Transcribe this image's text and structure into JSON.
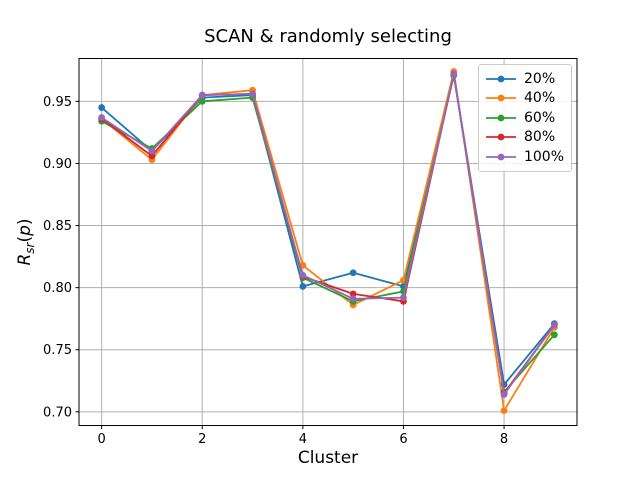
{
  "figure": {
    "title": "SCAN & randomly selecting",
    "xlabel": "Cluster",
    "ylabel": {
      "r": "R",
      "sub": "sr",
      "open": "(",
      "p": "p",
      "close": ")"
    }
  },
  "chart_data": {
    "type": "line",
    "title": "SCAN & randomly selecting",
    "xlabel": "Cluster",
    "ylabel": "R_sr(p)",
    "x": [
      0,
      1,
      2,
      3,
      4,
      5,
      6,
      7,
      8,
      9
    ],
    "series": [
      {
        "name": "20%",
        "color": "#1f77b4",
        "values": [
          0.945,
          0.91,
          0.953,
          0.955,
          0.801,
          0.812,
          0.801,
          0.971,
          0.722,
          0.771
        ]
      },
      {
        "name": "40%",
        "color": "#ff7f0e",
        "values": [
          0.936,
          0.903,
          0.955,
          0.959,
          0.818,
          0.786,
          0.806,
          0.974,
          0.701,
          0.768
        ]
      },
      {
        "name": "60%",
        "color": "#2ca02c",
        "values": [
          0.934,
          0.912,
          0.95,
          0.953,
          0.808,
          0.789,
          0.797,
          0.971,
          0.716,
          0.762
        ]
      },
      {
        "name": "80%",
        "color": "#d62728",
        "values": [
          0.936,
          0.906,
          0.955,
          0.956,
          0.809,
          0.795,
          0.789,
          0.972,
          0.715,
          0.77
        ]
      },
      {
        "name": "100%",
        "color": "#9467bd",
        "values": [
          0.937,
          0.91,
          0.955,
          0.956,
          0.81,
          0.791,
          0.792,
          0.972,
          0.714,
          0.77
        ]
      }
    ],
    "xlim": [
      -0.45,
      9.45
    ],
    "ylim": [
      0.689,
      0.9845
    ],
    "xticks": [
      0,
      2,
      4,
      6,
      8
    ],
    "yticks": [
      0.7,
      0.75,
      0.8,
      0.85,
      0.9,
      0.95
    ],
    "grid": true,
    "legend_position": "upper right",
    "grid_color": "#b0b0b0",
    "spine_color": "#000000",
    "background": "#ffffff"
  }
}
